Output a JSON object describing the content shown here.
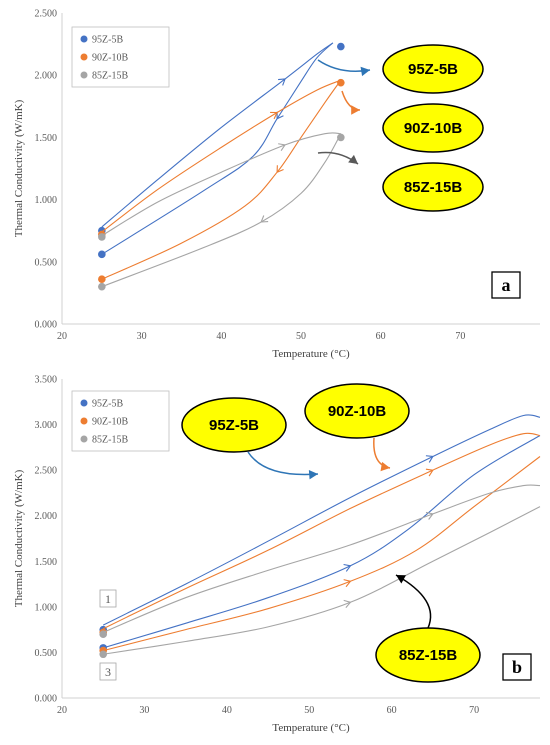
{
  "chart_data": [
    {
      "type": "scatter",
      "panel_label": "a",
      "xlabel": "Temperature (°C)",
      "ylabel": "Thermal Conductivity (W/mK)",
      "xlim": [
        20,
        80
      ],
      "ylim": [
        0,
        2.5
      ],
      "xticks": [
        "20",
        "30",
        "40",
        "50",
        "60",
        "70"
      ],
      "yticks": [
        "0.000",
        "0.500",
        "1.000",
        "1.500",
        "2.000",
        "2.500"
      ],
      "grid": false,
      "legend_position": "top-left",
      "series": [
        {
          "name": "95Z-5B",
          "color": "#4472C4",
          "points": [
            {
              "x": 25,
              "y": 0.75
            },
            {
              "x": 25,
              "y": 0.56
            },
            {
              "x": 55,
              "y": 2.23
            }
          ],
          "heating": [
            [
              25,
              0.78
            ],
            [
              32,
              1.16
            ],
            [
              40,
              1.58
            ],
            [
              48,
              1.97
            ],
            [
              52,
              2.17
            ],
            [
              54,
              2.26
            ]
          ],
          "cooling": [
            [
              54,
              2.26
            ],
            [
              52,
              2.14
            ],
            [
              50,
              1.95
            ],
            [
              47,
              1.65
            ],
            [
              44,
              1.35
            ],
            [
              38,
              1.08
            ],
            [
              25,
              0.56
            ]
          ]
        },
        {
          "name": "90Z-10B",
          "color": "#ED7D31",
          "points": [
            {
              "x": 25,
              "y": 0.72
            },
            {
              "x": 25,
              "y": 0.36
            },
            {
              "x": 55,
              "y": 1.94
            }
          ],
          "heating": [
            [
              25,
              0.74
            ],
            [
              32,
              1.08
            ],
            [
              40,
              1.42
            ],
            [
              47,
              1.7
            ],
            [
              52,
              1.88
            ],
            [
              55,
              1.96
            ]
          ],
          "cooling": [
            [
              55,
              1.96
            ],
            [
              53,
              1.78
            ],
            [
              50,
              1.5
            ],
            [
              47,
              1.22
            ],
            [
              43,
              0.95
            ],
            [
              35,
              0.65
            ],
            [
              25,
              0.36
            ]
          ]
        },
        {
          "name": "85Z-15B",
          "color": "#A5A5A5",
          "points": [
            {
              "x": 25,
              "y": 0.7
            },
            {
              "x": 25,
              "y": 0.3
            },
            {
              "x": 55,
              "y": 1.5
            }
          ],
          "heating": [
            [
              25,
              0.71
            ],
            [
              32,
              0.98
            ],
            [
              40,
              1.22
            ],
            [
              48,
              1.44
            ],
            [
              53,
              1.53
            ],
            [
              55,
              1.53
            ]
          ],
          "cooling": [
            [
              55,
              1.53
            ],
            [
              53,
              1.3
            ],
            [
              50,
              1.05
            ],
            [
              45,
              0.82
            ],
            [
              38,
              0.62
            ],
            [
              25,
              0.3
            ]
          ]
        }
      ],
      "callouts": [
        "95Z-5B",
        "90Z-10B",
        "85Z-15B"
      ]
    },
    {
      "type": "line",
      "panel_label": "b",
      "xlabel": "Temperature (°C)",
      "ylabel": "Thermal Conductivity (W/mK)",
      "xlim": [
        20,
        78
      ],
      "ylim": [
        0,
        3.5
      ],
      "xticks": [
        "20",
        "30",
        "40",
        "50",
        "60",
        "70"
      ],
      "yticks": [
        "0.000",
        "0.500",
        "1.000",
        "1.500",
        "2.000",
        "2.500",
        "3.000",
        "3.500"
      ],
      "grid": false,
      "legend_position": "top-left",
      "series": [
        {
          "name": "95Z-5B",
          "color": "#4472C4",
          "points": [
            {
              "x": 25,
              "y": 0.75
            },
            {
              "x": 25,
              "y": 0.55
            }
          ],
          "heating": [
            [
              25,
              0.8
            ],
            [
              35,
              1.25
            ],
            [
              45,
              1.72
            ],
            [
              55,
              2.2
            ],
            [
              65,
              2.65
            ],
            [
              72,
              2.95
            ],
            [
              76,
              3.1
            ],
            [
              78,
              3.08
            ]
          ],
          "cooling": [
            [
              25,
              0.55
            ],
            [
              35,
              0.82
            ],
            [
              45,
              1.1
            ],
            [
              55,
              1.45
            ],
            [
              62,
              1.85
            ],
            [
              70,
              2.45
            ],
            [
              78,
              2.88
            ]
          ]
        },
        {
          "name": "90Z-10B",
          "color": "#ED7D31",
          "points": [
            {
              "x": 25,
              "y": 0.72
            },
            {
              "x": 25,
              "y": 0.52
            }
          ],
          "heating": [
            [
              25,
              0.76
            ],
            [
              35,
              1.2
            ],
            [
              45,
              1.62
            ],
            [
              55,
              2.08
            ],
            [
              65,
              2.5
            ],
            [
              72,
              2.78
            ],
            [
              76,
              2.9
            ],
            [
              78,
              2.88
            ]
          ],
          "cooling": [
            [
              25,
              0.52
            ],
            [
              35,
              0.75
            ],
            [
              45,
              0.98
            ],
            [
              55,
              1.28
            ],
            [
              63,
              1.62
            ],
            [
              70,
              2.1
            ],
            [
              78,
              2.65
            ]
          ]
        },
        {
          "name": "85Z-15B",
          "color": "#A5A5A5",
          "points": [
            {
              "x": 25,
              "y": 0.7
            },
            {
              "x": 25,
              "y": 0.48
            }
          ],
          "heating": [
            [
              25,
              0.72
            ],
            [
              35,
              1.1
            ],
            [
              45,
              1.4
            ],
            [
              55,
              1.68
            ],
            [
              65,
              2.02
            ],
            [
              72,
              2.25
            ],
            [
              76,
              2.33
            ],
            [
              78,
              2.33
            ]
          ],
          "cooling": [
            [
              25,
              0.48
            ],
            [
              35,
              0.62
            ],
            [
              45,
              0.78
            ],
            [
              55,
              1.05
            ],
            [
              65,
              1.5
            ],
            [
              72,
              1.82
            ],
            [
              78,
              2.1
            ]
          ]
        }
      ],
      "callouts": [
        "95Z-5B",
        "90Z-10B",
        "85Z-15B"
      ],
      "notes": [
        "1",
        "3"
      ]
    }
  ]
}
